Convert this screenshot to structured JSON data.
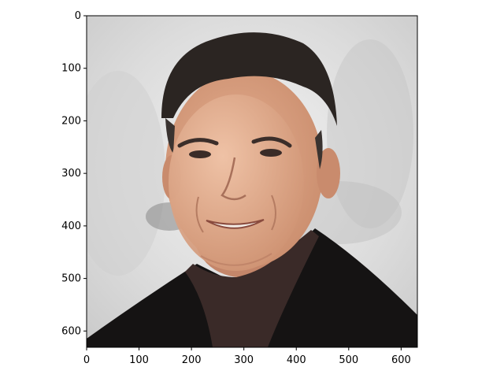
{
  "figure": {
    "type": "image-plot",
    "image_subject": "portrait of a smiling man with short dark hair in dark clothing; a circular face region appears pasted/blended over the face",
    "x_axis": {
      "range": [
        0,
        631
      ],
      "ticks": [
        0,
        100,
        200,
        300,
        400,
        500,
        600
      ]
    },
    "y_axis": {
      "range": [
        0,
        631
      ],
      "inverted": true,
      "ticks": [
        0,
        100,
        200,
        300,
        400,
        500,
        600
      ]
    },
    "colors": {
      "background": "#e6e6e6",
      "skin": "#d69a7a",
      "pasted_face": "#dba88a",
      "hair": "#2b2522",
      "jacket": "#151313",
      "shirt": "#3a2a28"
    }
  }
}
